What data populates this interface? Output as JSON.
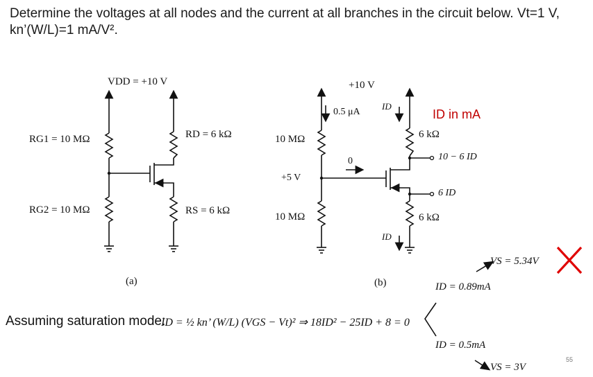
{
  "title": "Determine the voltages at all nodes and the current at all branches in the circuit below. Vt=1 V, kn’(W/L)=1 mA/V².",
  "circuit_a": {
    "vdd": "VDD = +10 V",
    "rg1": "RG1 = 10 MΩ",
    "rg2": "RG2 = 10 MΩ",
    "rd": "RD = 6 kΩ",
    "rs": "RS = 6 kΩ",
    "caption": "(a)"
  },
  "circuit_b": {
    "supply": "+10 V",
    "gate_current": "0.5 μA",
    "id_top": "ID",
    "id_bottom": "ID",
    "r_top_left": "10 MΩ",
    "r_bottom_left": "10 MΩ",
    "gate_voltage": "+5 V",
    "zero_current": "0",
    "r_drain": "6 kΩ",
    "r_source": "6 kΩ",
    "drain_voltage": "10 − 6 ID",
    "source_voltage": "6 ID",
    "id_unit_note": "ID in mA",
    "caption": "(b)"
  },
  "analysis": {
    "assumption": "Assuming saturation mode:",
    "equation": "ID = ½ kn’ (W/L) (VGS − Vt)² ⇒ 18ID² − 25ID + 8 = 0",
    "root1": "ID = 0.89mA",
    "root1_vs": "VS = 5.34V",
    "root2": "ID = 0.5mA",
    "root2_vs": "VS = 3V",
    "reject_mark": "x-mark-icon"
  },
  "page_number": "55"
}
